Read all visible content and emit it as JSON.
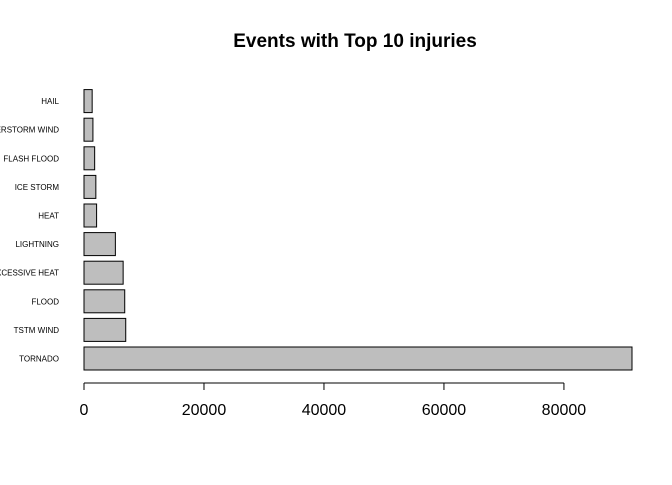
{
  "chart_data": {
    "type": "bar",
    "orientation": "horizontal",
    "title": "Events with Top 10 injuries",
    "xlabel": "",
    "ylabel": "",
    "categories": [
      "TORNADO",
      "TSTM WIND",
      "FLOOD",
      "EXCESSIVE HEAT",
      "LIGHTNING",
      "HEAT",
      "ICE STORM",
      "FLASH FLOOD",
      "THUNDERSTORM WIND",
      "HAIL"
    ],
    "values": [
      91346,
      6957,
      6789,
      6525,
      5230,
      2100,
      1975,
      1777,
      1488,
      1361
    ],
    "xlim": [
      0,
      91346
    ],
    "xticks": [
      0,
      20000,
      40000,
      60000,
      80000
    ],
    "bar_color": "#bebebe",
    "bar_border": "#000000",
    "grid": false,
    "legend": "none"
  }
}
